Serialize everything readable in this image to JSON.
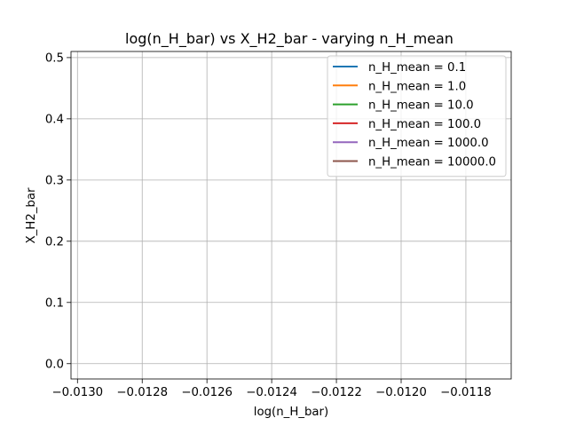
{
  "chart_data": {
    "type": "line",
    "title": "log(n_H_bar) vs X_H2_bar - varying n_H_mean",
    "xlabel": "log(n_H_bar)",
    "ylabel": "X_H2_bar",
    "xlim": [
      -0.01302,
      -0.01166
    ],
    "ylim": [
      -0.025,
      0.51
    ],
    "xticks": [
      -0.013,
      -0.0128,
      -0.0126,
      -0.0124,
      -0.0122,
      -0.012,
      -0.0118
    ],
    "xtick_labels": [
      "−0.0130",
      "−0.0128",
      "−0.0126",
      "−0.0124",
      "−0.0122",
      "−0.0120",
      "−0.0118"
    ],
    "yticks": [
      0.0,
      0.1,
      0.2,
      0.3,
      0.4,
      0.5
    ],
    "ytick_labels": [
      "0.0",
      "0.1",
      "0.2",
      "0.3",
      "0.4",
      "0.5"
    ],
    "grid": true,
    "legend_position": "top-right",
    "series": [
      {
        "name": "n_H_mean = 0.1",
        "color": "#1f77b4",
        "x": [],
        "y": []
      },
      {
        "name": "n_H_mean = 1.0",
        "color": "#ff7f0e",
        "x": [],
        "y": []
      },
      {
        "name": "n_H_mean = 10.0",
        "color": "#2ca02c",
        "x": [],
        "y": []
      },
      {
        "name": "n_H_mean = 100.0",
        "color": "#d62728",
        "x": [],
        "y": []
      },
      {
        "name": "n_H_mean = 1000.0",
        "color": "#9467bd",
        "x": [],
        "y": []
      },
      {
        "name": "n_H_mean = 10000.0",
        "color": "#8c564b",
        "x": [],
        "y": []
      }
    ]
  }
}
